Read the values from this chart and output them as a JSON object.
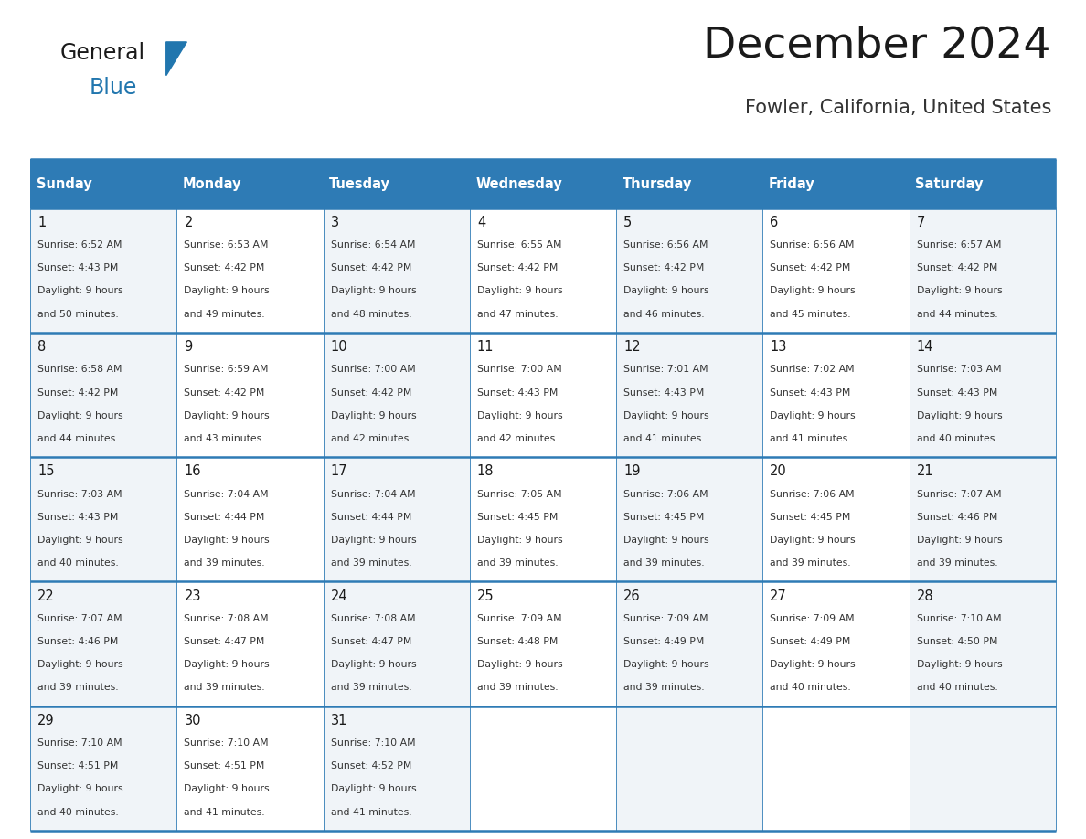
{
  "title": "December 2024",
  "subtitle": "Fowler, California, United States",
  "header_bg_color": "#2E7BB5",
  "header_text_color": "#FFFFFF",
  "day_names": [
    "Sunday",
    "Monday",
    "Tuesday",
    "Wednesday",
    "Thursday",
    "Friday",
    "Saturday"
  ],
  "title_color": "#1a1a1a",
  "subtitle_color": "#333333",
  "cell_bg_even": "#FFFFFF",
  "cell_bg_odd": "#F0F4F8",
  "grid_line_color": "#2E7BB5",
  "day_num_color": "#1a1a1a",
  "cell_text_color": "#333333",
  "logo_general_color": "#1a1a1a",
  "logo_blue_color": "#2176AE",
  "calendar_data": [
    [
      {
        "day": 1,
        "sunrise": "6:52 AM",
        "sunset": "4:43 PM",
        "daylight_hours": 9,
        "daylight_minutes": 50
      },
      {
        "day": 2,
        "sunrise": "6:53 AM",
        "sunset": "4:42 PM",
        "daylight_hours": 9,
        "daylight_minutes": 49
      },
      {
        "day": 3,
        "sunrise": "6:54 AM",
        "sunset": "4:42 PM",
        "daylight_hours": 9,
        "daylight_minutes": 48
      },
      {
        "day": 4,
        "sunrise": "6:55 AM",
        "sunset": "4:42 PM",
        "daylight_hours": 9,
        "daylight_minutes": 47
      },
      {
        "day": 5,
        "sunrise": "6:56 AM",
        "sunset": "4:42 PM",
        "daylight_hours": 9,
        "daylight_minutes": 46
      },
      {
        "day": 6,
        "sunrise": "6:56 AM",
        "sunset": "4:42 PM",
        "daylight_hours": 9,
        "daylight_minutes": 45
      },
      {
        "day": 7,
        "sunrise": "6:57 AM",
        "sunset": "4:42 PM",
        "daylight_hours": 9,
        "daylight_minutes": 44
      }
    ],
    [
      {
        "day": 8,
        "sunrise": "6:58 AM",
        "sunset": "4:42 PM",
        "daylight_hours": 9,
        "daylight_minutes": 44
      },
      {
        "day": 9,
        "sunrise": "6:59 AM",
        "sunset": "4:42 PM",
        "daylight_hours": 9,
        "daylight_minutes": 43
      },
      {
        "day": 10,
        "sunrise": "7:00 AM",
        "sunset": "4:42 PM",
        "daylight_hours": 9,
        "daylight_minutes": 42
      },
      {
        "day": 11,
        "sunrise": "7:00 AM",
        "sunset": "4:43 PM",
        "daylight_hours": 9,
        "daylight_minutes": 42
      },
      {
        "day": 12,
        "sunrise": "7:01 AM",
        "sunset": "4:43 PM",
        "daylight_hours": 9,
        "daylight_minutes": 41
      },
      {
        "day": 13,
        "sunrise": "7:02 AM",
        "sunset": "4:43 PM",
        "daylight_hours": 9,
        "daylight_minutes": 41
      },
      {
        "day": 14,
        "sunrise": "7:03 AM",
        "sunset": "4:43 PM",
        "daylight_hours": 9,
        "daylight_minutes": 40
      }
    ],
    [
      {
        "day": 15,
        "sunrise": "7:03 AM",
        "sunset": "4:43 PM",
        "daylight_hours": 9,
        "daylight_minutes": 40
      },
      {
        "day": 16,
        "sunrise": "7:04 AM",
        "sunset": "4:44 PM",
        "daylight_hours": 9,
        "daylight_minutes": 39
      },
      {
        "day": 17,
        "sunrise": "7:04 AM",
        "sunset": "4:44 PM",
        "daylight_hours": 9,
        "daylight_minutes": 39
      },
      {
        "day": 18,
        "sunrise": "7:05 AM",
        "sunset": "4:45 PM",
        "daylight_hours": 9,
        "daylight_minutes": 39
      },
      {
        "day": 19,
        "sunrise": "7:06 AM",
        "sunset": "4:45 PM",
        "daylight_hours": 9,
        "daylight_minutes": 39
      },
      {
        "day": 20,
        "sunrise": "7:06 AM",
        "sunset": "4:45 PM",
        "daylight_hours": 9,
        "daylight_minutes": 39
      },
      {
        "day": 21,
        "sunrise": "7:07 AM",
        "sunset": "4:46 PM",
        "daylight_hours": 9,
        "daylight_minutes": 39
      }
    ],
    [
      {
        "day": 22,
        "sunrise": "7:07 AM",
        "sunset": "4:46 PM",
        "daylight_hours": 9,
        "daylight_minutes": 39
      },
      {
        "day": 23,
        "sunrise": "7:08 AM",
        "sunset": "4:47 PM",
        "daylight_hours": 9,
        "daylight_minutes": 39
      },
      {
        "day": 24,
        "sunrise": "7:08 AM",
        "sunset": "4:47 PM",
        "daylight_hours": 9,
        "daylight_minutes": 39
      },
      {
        "day": 25,
        "sunrise": "7:09 AM",
        "sunset": "4:48 PM",
        "daylight_hours": 9,
        "daylight_minutes": 39
      },
      {
        "day": 26,
        "sunrise": "7:09 AM",
        "sunset": "4:49 PM",
        "daylight_hours": 9,
        "daylight_minutes": 39
      },
      {
        "day": 27,
        "sunrise": "7:09 AM",
        "sunset": "4:49 PM",
        "daylight_hours": 9,
        "daylight_minutes": 40
      },
      {
        "day": 28,
        "sunrise": "7:10 AM",
        "sunset": "4:50 PM",
        "daylight_hours": 9,
        "daylight_minutes": 40
      }
    ],
    [
      {
        "day": 29,
        "sunrise": "7:10 AM",
        "sunset": "4:51 PM",
        "daylight_hours": 9,
        "daylight_minutes": 40
      },
      {
        "day": 30,
        "sunrise": "7:10 AM",
        "sunset": "4:51 PM",
        "daylight_hours": 9,
        "daylight_minutes": 41
      },
      {
        "day": 31,
        "sunrise": "7:10 AM",
        "sunset": "4:52 PM",
        "daylight_hours": 9,
        "daylight_minutes": 41
      },
      null,
      null,
      null,
      null
    ]
  ]
}
